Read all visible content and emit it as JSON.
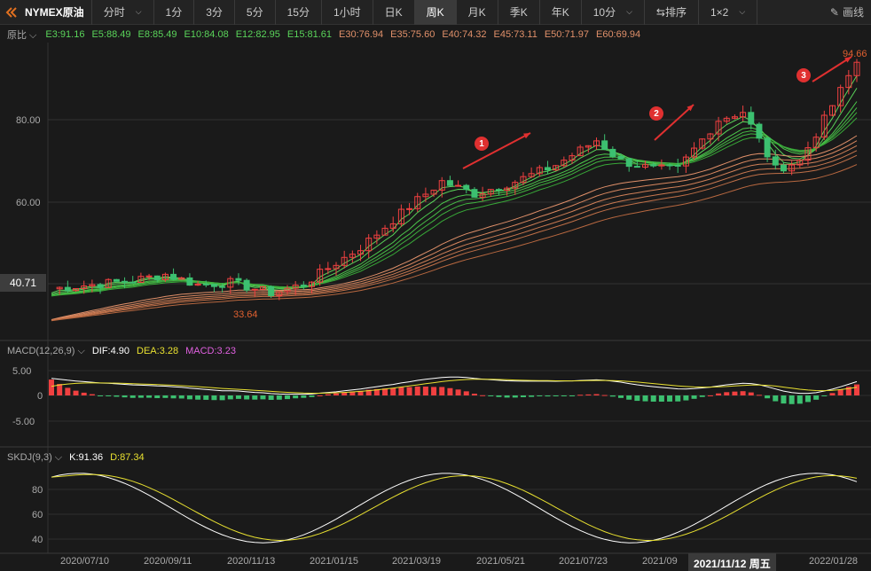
{
  "toolbar": {
    "title": "NYMEX原油",
    "items": [
      "分时",
      "1分",
      "3分",
      "5分",
      "15分",
      "1小时",
      "日K",
      "周K",
      "月K",
      "季K",
      "年K",
      "10分",
      "排序",
      "1×2"
    ],
    "active": "周K",
    "draw": "画线"
  },
  "ma": {
    "label": "原比",
    "lines": [
      {
        "t": "E3:91.16",
        "c": "#5ad45a"
      },
      {
        "t": "E5:88.49",
        "c": "#5ad45a"
      },
      {
        "t": "E8:85.49",
        "c": "#5ad45a"
      },
      {
        "t": "E10:84.08",
        "c": "#5ad45a"
      },
      {
        "t": "E12:82.95",
        "c": "#5ad45a"
      },
      {
        "t": "E15:81.61",
        "c": "#5ad45a"
      },
      {
        "t": "E30:76.94",
        "c": "#e0906a"
      },
      {
        "t": "E35:75.60",
        "c": "#e0906a"
      },
      {
        "t": "E40:74.32",
        "c": "#e0906a"
      },
      {
        "t": "E45:73.11",
        "c": "#e0906a"
      },
      {
        "t": "E50:71.97",
        "c": "#e0906a"
      },
      {
        "t": "E60:69.94",
        "c": "#e0906a"
      }
    ]
  },
  "price_axis": [
    "80.00",
    "60.00"
  ],
  "current_price": "40.71",
  "low_label": "33.64",
  "high_label": "94.66",
  "markers": [
    "1",
    "2",
    "3"
  ],
  "macd": {
    "title": "MACD(12,26,9)",
    "dif": "DIF:4.90",
    "dea": "DEA:3.28",
    "macd": "MACD:3.23",
    "ticks": [
      "5.00",
      "0",
      "-5.00"
    ]
  },
  "kdj": {
    "title": "SKDJ(9,3)",
    "k": "K:91.36",
    "d": "D:87.34",
    "ticks": [
      "80",
      "60",
      "40"
    ]
  },
  "x_axis": [
    "2020/07/10",
    "2020/09/11",
    "2020/11/13",
    "2021/01/15",
    "2021/03/19",
    "2021/05/21",
    "2021/07/23",
    "2021/09",
    "2022/01/28"
  ],
  "crosshair_date": "2021/11/12 周五",
  "colors": {
    "up": "#f04040",
    "down": "#3cc070",
    "ma_short": "#5ad45a",
    "ma_long": "#e0906a",
    "dif": "#ffffff",
    "dea": "#e8e030"
  }
}
